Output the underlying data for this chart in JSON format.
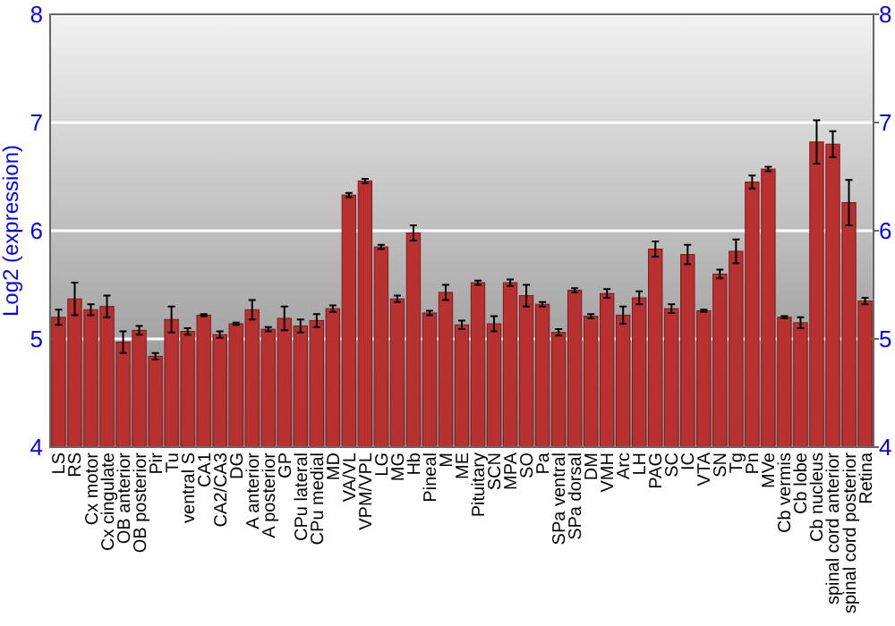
{
  "chart_data": {
    "type": "bar",
    "ylabel": "Log2 (expression)",
    "categories": [
      "LS",
      "RS",
      "Cx motor",
      "Cx cingulate",
      "OB anterior",
      "OB posterior",
      "Pir",
      "Tu",
      "ventral S",
      "CA1",
      "CA2/CA3",
      "DG",
      "A anterior",
      "A posterior",
      "GP",
      "CPu lateral",
      "CPu medial",
      "MD",
      "VA/VL",
      "VPM/VPL",
      "LG",
      "MG",
      "Hb",
      "Pineal",
      "M",
      "ME",
      "Pituitary",
      "SCN",
      "MPA",
      "SO",
      "Pa",
      "SPa ventral",
      "SPa dorsal",
      "DM",
      "VMH",
      "Arc",
      "LH",
      "PAG",
      "SC",
      "IC",
      "VTA",
      "SN",
      "Tg",
      "Pn",
      "MVe",
      "Cb vermis",
      "Cb lobe",
      "Cb nucleus",
      "spinal cord anterior",
      "spinal cord posterior",
      "Retina"
    ],
    "values": [
      5.2,
      5.37,
      5.27,
      5.3,
      4.97,
      5.08,
      4.84,
      5.18,
      5.07,
      5.22,
      5.04,
      5.14,
      5.27,
      5.09,
      5.19,
      5.12,
      5.17,
      5.28,
      6.33,
      6.46,
      5.85,
      5.37,
      5.98,
      5.24,
      5.43,
      5.13,
      5.52,
      5.14,
      5.52,
      5.4,
      5.32,
      5.06,
      5.45,
      5.21,
      5.42,
      5.22,
      5.38,
      5.83,
      5.28,
      5.78,
      5.26,
      5.6,
      5.81,
      6.45,
      6.57,
      5.2,
      5.15,
      6.82,
      6.8,
      6.26,
      5.35
    ],
    "errors": [
      0.07,
      0.15,
      0.05,
      0.1,
      0.1,
      0.04,
      0.03,
      0.12,
      0.03,
      0.01,
      0.03,
      0.01,
      0.09,
      0.02,
      0.11,
      0.06,
      0.06,
      0.03,
      0.02,
      0.02,
      0.02,
      0.03,
      0.07,
      0.02,
      0.07,
      0.04,
      0.02,
      0.07,
      0.03,
      0.1,
      0.02,
      0.03,
      0.02,
      0.02,
      0.04,
      0.08,
      0.06,
      0.07,
      0.04,
      0.09,
      0.01,
      0.04,
      0.11,
      0.06,
      0.02,
      0.01,
      0.05,
      0.2,
      0.12,
      0.21,
      0.03
    ],
    "color": "#b83030",
    "ylim": [
      4,
      8
    ],
    "yticks": [
      4,
      5,
      6,
      7,
      8
    ],
    "y2lim": [
      4,
      8
    ],
    "y2ticks": [
      4,
      5,
      6,
      7,
      8
    ],
    "grid": "y"
  }
}
